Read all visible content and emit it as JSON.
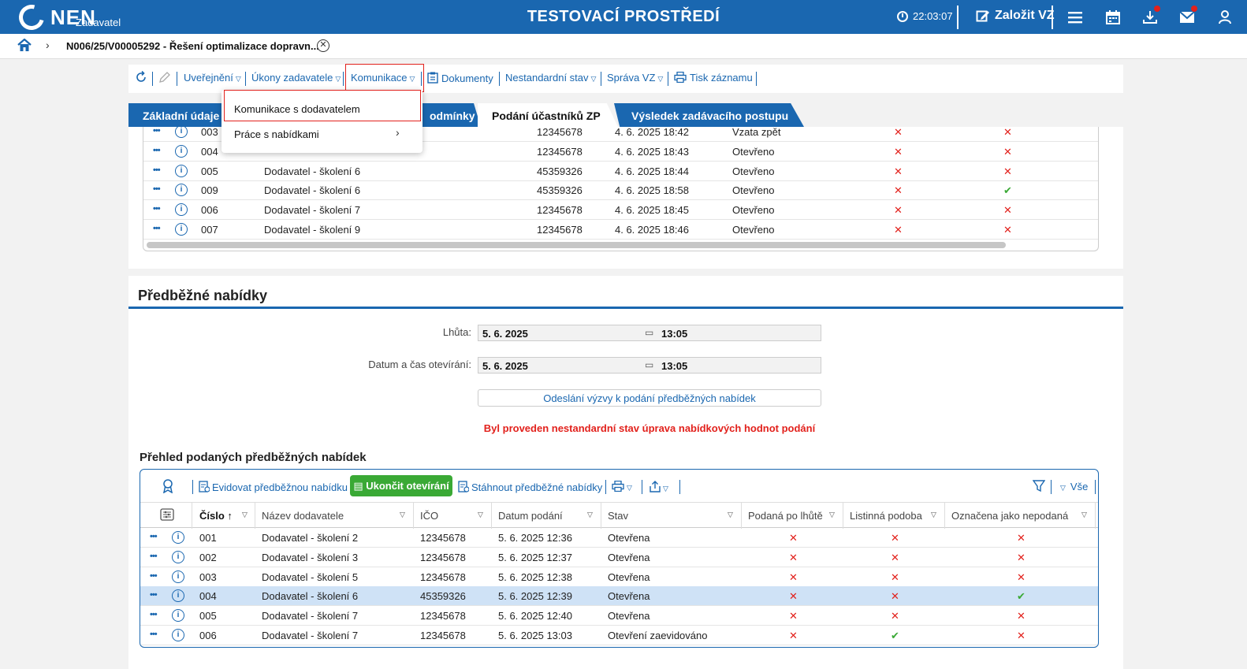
{
  "header": {
    "logo_text": "NEN",
    "logo_sub": "Zadavatel",
    "env_title": "TESTOVACÍ PROSTŘEDÍ",
    "clock": "22:03:07",
    "create_label": "Založit VZ"
  },
  "breadcrumb": {
    "title": "N006/25/V00005292 - Řešení optimalizace dopravn...",
    "close_glyph": "✕"
  },
  "toolbar": {
    "publish": "Uveřejnění",
    "acts": "Úkony zadavatele",
    "communication": "Komunikace",
    "documents": "Dokumenty",
    "nonstandard": "Nestandardní stav",
    "admin": "Správa VZ",
    "print": "Tisk záznamu"
  },
  "dropdown": {
    "item1": "Komunikace s dodavatelem",
    "item2": "Práce s nabídkami"
  },
  "tabs": {
    "basic": "Základní údaje",
    "conditions": "odmínky",
    "bids": "Podání účastníků ZP",
    "result": "Výsledek zadávacího postupu"
  },
  "upper_rows": [
    {
      "num": "003",
      "supplier": "",
      "ico": "12345678",
      "date": "4. 6. 2025 18:42",
      "state": "Vzata zpět",
      "a": "x",
      "b": "x"
    },
    {
      "num": "004",
      "supplier": "",
      "ico": "12345678",
      "date": "4. 6. 2025 18:43",
      "state": "Otevřeno",
      "a": "x",
      "b": "x"
    },
    {
      "num": "005",
      "supplier": "Dodavatel - školení 6",
      "ico": "45359326",
      "date": "4. 6. 2025 18:44",
      "state": "Otevřeno",
      "a": "x",
      "b": "x"
    },
    {
      "num": "009",
      "supplier": "Dodavatel - školení 6",
      "ico": "45359326",
      "date": "4. 6. 2025 18:58",
      "state": "Otevřeno",
      "a": "x",
      "b": "ok"
    },
    {
      "num": "006",
      "supplier": "Dodavatel - školení 7",
      "ico": "12345678",
      "date": "4. 6. 2025 18:45",
      "state": "Otevřeno",
      "a": "x",
      "b": "x"
    },
    {
      "num": "007",
      "supplier": "Dodavatel - školení 9",
      "ico": "12345678",
      "date": "4. 6. 2025 18:46",
      "state": "Otevřeno",
      "a": "x",
      "b": "x"
    }
  ],
  "lower": {
    "title": "Předběžné nabídky",
    "deadline_label": "Lhůta:",
    "deadline_date": "5. 6. 2025",
    "deadline_time": "13:05",
    "opening_label": "Datum a čas otevírání:",
    "opening_date": "5. 6. 2025",
    "opening_time": "13:05",
    "send_button": "Odeslání výzvy k podání předběžných nabídek",
    "warning": "Byl proveden nestandardní stav úprava nabídkových hodnot podání",
    "overview_title": "Přehled podaných předběžných nabídek"
  },
  "grid_toolbar": {
    "register": "Evidovat předběžnou nabídku",
    "end_opening": "Ukončit otevírání",
    "download": "Stáhnout předběžné nabídky",
    "all": "Vše"
  },
  "grid_columns": {
    "num": "Číslo",
    "supplier": "Název dodavatele",
    "ico": "IČO",
    "date": "Datum podání",
    "state": "Stav",
    "late": "Podaná po lhůtě",
    "paper": "Listinná podoba",
    "unsubmitted": "Označena jako nepodaná"
  },
  "grid_rows": [
    {
      "num": "001",
      "supplier": "Dodavatel - školení 2",
      "ico": "12345678",
      "date": "5. 6. 2025 12:36",
      "state": "Otevřena",
      "late": "x",
      "paper": "x",
      "unsub": "x"
    },
    {
      "num": "002",
      "supplier": "Dodavatel - školení 3",
      "ico": "12345678",
      "date": "5. 6. 2025 12:37",
      "state": "Otevřena",
      "late": "x",
      "paper": "x",
      "unsub": "x"
    },
    {
      "num": "003",
      "supplier": "Dodavatel - školení 5",
      "ico": "12345678",
      "date": "5. 6. 2025 12:38",
      "state": "Otevřena",
      "late": "x",
      "paper": "x",
      "unsub": "x"
    },
    {
      "num": "004",
      "supplier": "Dodavatel - školení 6",
      "ico": "45359326",
      "date": "5. 6. 2025 12:39",
      "state": "Otevřena",
      "late": "x",
      "paper": "x",
      "unsub": "ok"
    },
    {
      "num": "005",
      "supplier": "Dodavatel - školení 7",
      "ico": "12345678",
      "date": "5. 6. 2025 12:40",
      "state": "Otevřena",
      "late": "x",
      "paper": "x",
      "unsub": "x"
    },
    {
      "num": "006",
      "supplier": "Dodavatel - školení 7",
      "ico": "12345678",
      "date": "5. 6. 2025 13:03",
      "state": "Otevření zaevidováno",
      "late": "x",
      "paper": "ok",
      "unsub": "x"
    }
  ],
  "colors": {
    "primary": "#1a67b0",
    "danger": "#e2211c",
    "success": "#3aa935",
    "selected_row": "#cfe2f6"
  },
  "icons": {
    "dots": "•••",
    "info": "i",
    "x_mark": "✕",
    "check_mark": "✔"
  }
}
